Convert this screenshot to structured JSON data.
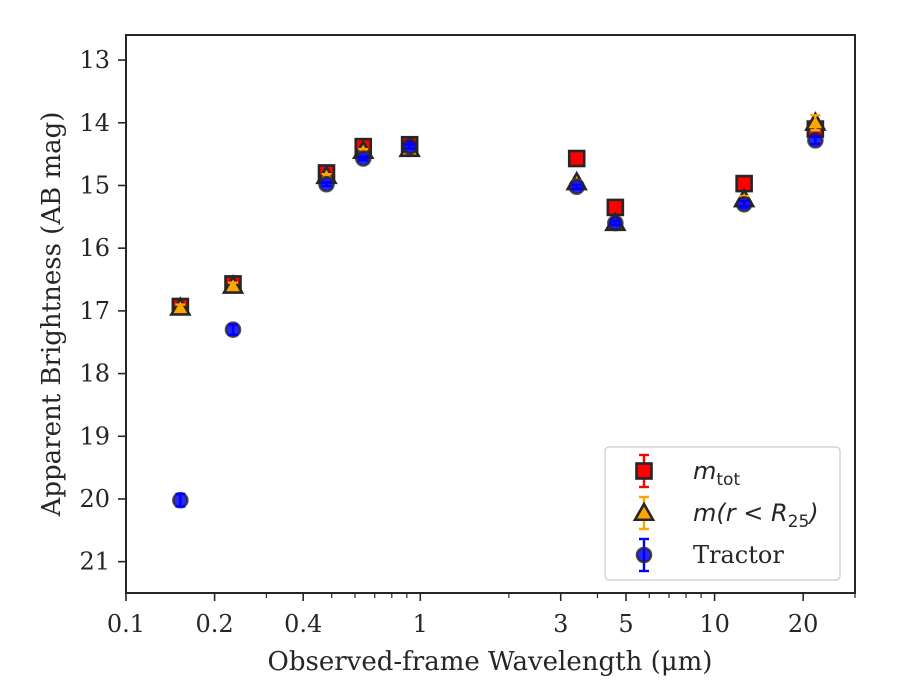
{
  "chart_data": {
    "type": "scatter",
    "xlabel": "Observed-frame Wavelength (μm)",
    "ylabel": "Apparent Brightness (AB mag)",
    "x_scale": "log",
    "y_inverted": true,
    "xlim": [
      0.1,
      30
    ],
    "ylim": [
      12.6,
      21.5
    ],
    "x_ticks": [
      0.1,
      0.2,
      0.4,
      1,
      3,
      5,
      10,
      20
    ],
    "x_tick_labels": [
      "0.1",
      "0.2",
      "0.4",
      "1",
      "3",
      "5",
      "10",
      "20"
    ],
    "y_ticks": [
      13,
      14,
      15,
      16,
      17,
      18,
      19,
      20,
      21
    ],
    "y_tick_labels": [
      "13",
      "14",
      "15",
      "16",
      "17",
      "18",
      "19",
      "20",
      "21"
    ],
    "legend_position": "lower-right",
    "legend_labels": {
      "mtot": {
        "base": "m",
        "sub": "tot"
      },
      "mr25": {
        "base": "m(r < R",
        "sub": "25",
        "close": ")"
      },
      "tractor": "Tractor"
    },
    "series": [
      {
        "key": "mtot",
        "marker": "square",
        "color": "#ff0000",
        "x": [
          0.153,
          0.231,
          0.48,
          0.64,
          0.92,
          3.4,
          4.6,
          12.6,
          22.0
        ],
        "y": [
          16.93,
          16.57,
          14.8,
          14.38,
          14.35,
          14.57,
          15.35,
          14.97,
          14.1
        ],
        "err": [
          0.05,
          0.05,
          0.03,
          0.03,
          0.03,
          0.03,
          0.03,
          0.05,
          0.1
        ]
      },
      {
        "key": "mr25",
        "marker": "triangle",
        "color": "#ffa500",
        "x": [
          0.153,
          0.231,
          0.48,
          0.64,
          0.92,
          3.4,
          4.6,
          12.6,
          22.0
        ],
        "y": [
          16.95,
          16.6,
          14.85,
          14.45,
          14.42,
          14.95,
          15.6,
          15.22,
          14.0
        ],
        "err": [
          0.05,
          0.05,
          0.03,
          0.03,
          0.03,
          0.03,
          0.03,
          0.05,
          0.12
        ]
      },
      {
        "key": "tractor",
        "marker": "circle",
        "color": "#0000ff",
        "x": [
          0.153,
          0.231,
          0.48,
          0.64,
          0.92,
          3.4,
          4.6,
          12.6,
          22.0
        ],
        "y": [
          20.02,
          17.3,
          14.98,
          14.57,
          14.38,
          15.02,
          15.6,
          15.3,
          14.28
        ],
        "err": [
          0.1,
          0.08,
          0.03,
          0.03,
          0.03,
          0.03,
          0.03,
          0.05,
          0.06
        ]
      }
    ]
  }
}
